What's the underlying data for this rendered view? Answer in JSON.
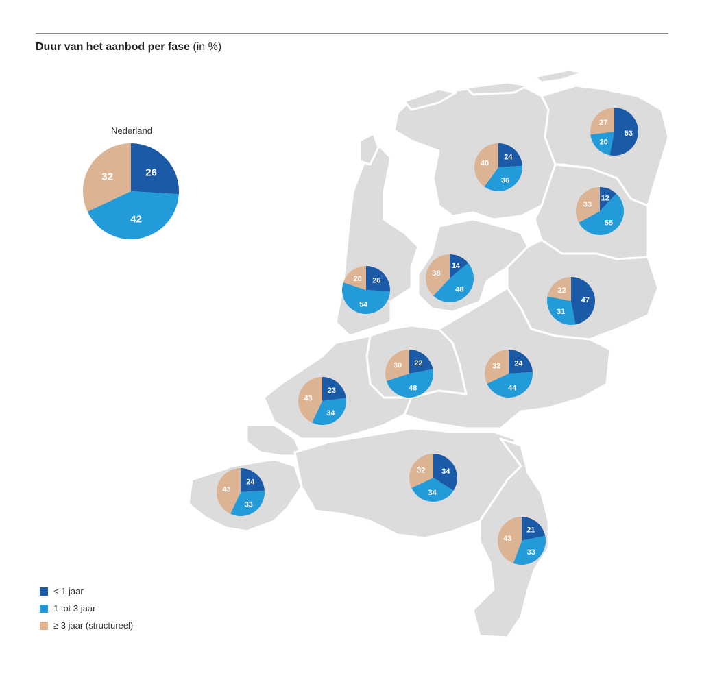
{
  "title": {
    "bold": "Duur van het aanbod per fase",
    "unit": "(in %)"
  },
  "colors": {
    "lt1": "#1b5aa6",
    "mid": "#229bd8",
    "gt3": "#dcb393",
    "land": "#dcdcdc",
    "border": "#ffffff"
  },
  "chart_data": {
    "type": "pie",
    "series_names": [
      "< 1 jaar",
      "1 tot 3 jaar",
      "≥ 3 jaar (structureel)"
    ],
    "national": {
      "label": "Nederland",
      "values": [
        26,
        42,
        32
      ]
    },
    "regions": [
      {
        "values": [
          53,
          20,
          27
        ]
      },
      {
        "values": [
          24,
          36,
          40
        ]
      },
      {
        "values": [
          12,
          55,
          33
        ]
      },
      {
        "values": [
          26,
          54,
          20
        ]
      },
      {
        "values": [
          14,
          48,
          38
        ]
      },
      {
        "values": [
          47,
          31,
          22
        ]
      },
      {
        "values": [
          22,
          48,
          30
        ]
      },
      {
        "values": [
          24,
          44,
          32
        ]
      },
      {
        "values": [
          23,
          34,
          43
        ]
      },
      {
        "values": [
          24,
          33,
          43
        ]
      },
      {
        "values": [
          34,
          34,
          32
        ]
      },
      {
        "values": [
          21,
          33,
          43
        ]
      }
    ]
  },
  "legend": [
    {
      "label": "< 1 jaar",
      "color": "#1b5aa6"
    },
    {
      "label": "1 tot 3 jaar",
      "color": "#229bd8"
    },
    {
      "label": "≥ 3 jaar (structureel)",
      "color": "#dcb393"
    }
  ]
}
